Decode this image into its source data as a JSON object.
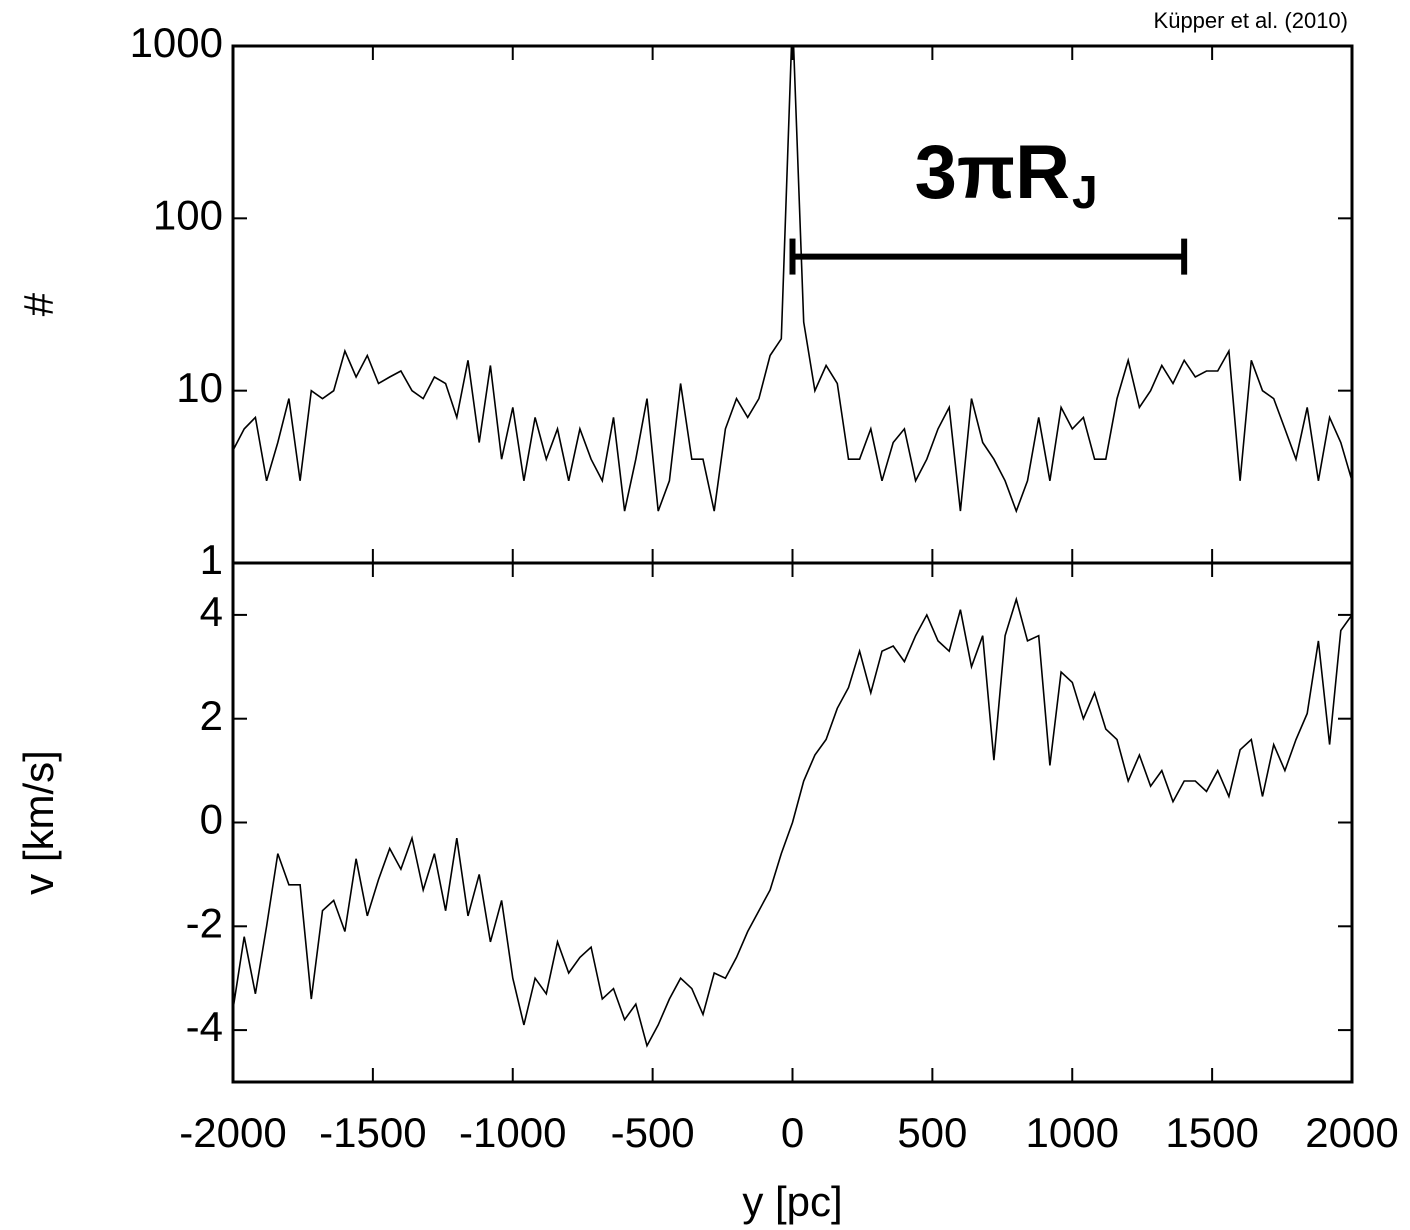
{
  "credit": "Küpper et al. (2010)",
  "chart_data": [
    {
      "type": "line",
      "ylabel": "#",
      "log_y": true,
      "color": "#000000",
      "xlim": [
        -2000,
        2000
      ],
      "xticks": [
        -2000,
        -1500,
        -1000,
        -500,
        0,
        500,
        1000,
        1500,
        2000
      ],
      "ylim": [
        1,
        1000
      ],
      "yticks": [
        1,
        10,
        100,
        1000
      ],
      "annotation": {
        "text": "3πR",
        "subscript": "J",
        "x": [
          0,
          1400
        ],
        "y": 60
      },
      "x": [
        -2000,
        -1960,
        -1920,
        -1880,
        -1840,
        -1800,
        -1760,
        -1720,
        -1680,
        -1640,
        -1600,
        -1560,
        -1520,
        -1480,
        -1440,
        -1400,
        -1360,
        -1320,
        -1280,
        -1240,
        -1200,
        -1160,
        -1120,
        -1080,
        -1040,
        -1000,
        -960,
        -920,
        -880,
        -840,
        -800,
        -760,
        -720,
        -680,
        -640,
        -600,
        -560,
        -520,
        -480,
        -440,
        -400,
        -360,
        -320,
        -280,
        -240,
        -200,
        -160,
        -120,
        -80,
        -40,
        0,
        40,
        80,
        120,
        160,
        200,
        240,
        280,
        320,
        360,
        400,
        440,
        480,
        520,
        560,
        600,
        640,
        680,
        720,
        760,
        800,
        840,
        880,
        920,
        960,
        1000,
        1040,
        1080,
        1120,
        1160,
        1200,
        1240,
        1280,
        1320,
        1360,
        1400,
        1440,
        1480,
        1520,
        1560,
        1600,
        1640,
        1680,
        1720,
        1760,
        1800,
        1840,
        1880,
        1920,
        1960,
        2000
      ],
      "values": [
        4.5,
        6,
        7,
        3,
        5,
        9,
        3,
        10,
        9,
        10,
        17,
        12,
        16,
        11,
        12,
        13,
        10,
        9,
        12,
        11,
        7,
        15,
        5,
        14,
        4,
        8,
        3,
        7,
        4,
        6,
        3,
        6,
        4,
        3,
        7,
        2,
        4,
        9,
        2,
        3,
        11,
        4,
        4,
        2,
        6,
        9,
        7,
        9,
        16,
        20,
        1500,
        25,
        10,
        14,
        11,
        4,
        4,
        6,
        3,
        5,
        6,
        3,
        4,
        6,
        8,
        2,
        9,
        5,
        4,
        3,
        2,
        3,
        7,
        3,
        8,
        6,
        7,
        4,
        4,
        9,
        15,
        8,
        10,
        14,
        11,
        15,
        12,
        13,
        13,
        17,
        3,
        15,
        10,
        9,
        6,
        4,
        8,
        3,
        7,
        5,
        3
      ]
    },
    {
      "type": "line",
      "ylabel": "v [km/s]",
      "xlabel": "y [pc]",
      "log_y": false,
      "color": "#000000",
      "xlim": [
        -2000,
        2000
      ],
      "xticks": [
        -2000,
        -1500,
        -1000,
        -500,
        0,
        500,
        1000,
        1500,
        2000
      ],
      "ylim": [
        -5,
        5
      ],
      "yticks": [
        -4,
        -2,
        0,
        2,
        4
      ],
      "x": [
        -2000,
        -1960,
        -1920,
        -1880,
        -1840,
        -1800,
        -1760,
        -1720,
        -1680,
        -1640,
        -1600,
        -1560,
        -1520,
        -1480,
        -1440,
        -1400,
        -1360,
        -1320,
        -1280,
        -1240,
        -1200,
        -1160,
        -1120,
        -1080,
        -1040,
        -1000,
        -960,
        -920,
        -880,
        -840,
        -800,
        -760,
        -720,
        -680,
        -640,
        -600,
        -560,
        -520,
        -480,
        -440,
        -400,
        -360,
        -320,
        -280,
        -240,
        -200,
        -160,
        -120,
        -80,
        -40,
        0,
        40,
        80,
        120,
        160,
        200,
        240,
        280,
        320,
        360,
        400,
        440,
        480,
        520,
        560,
        600,
        640,
        680,
        720,
        760,
        800,
        840,
        880,
        920,
        960,
        1000,
        1040,
        1080,
        1120,
        1160,
        1200,
        1240,
        1280,
        1320,
        1360,
        1400,
        1440,
        1480,
        1520,
        1560,
        1600,
        1640,
        1680,
        1720,
        1760,
        1800,
        1840,
        1880,
        1920,
        1960,
        2000
      ],
      "values": [
        -3.6,
        -2.2,
        -3.3,
        -2.0,
        -0.6,
        -1.2,
        -1.2,
        -3.4,
        -1.7,
        -1.5,
        -2.1,
        -0.7,
        -1.8,
        -1.1,
        -0.5,
        -0.9,
        -0.3,
        -1.3,
        -0.6,
        -1.7,
        -0.3,
        -1.8,
        -1.0,
        -2.3,
        -1.5,
        -3.0,
        -3.9,
        -3.0,
        -3.3,
        -2.3,
        -2.9,
        -2.6,
        -2.4,
        -3.4,
        -3.2,
        -3.8,
        -3.5,
        -4.3,
        -3.9,
        -3.4,
        -3.0,
        -3.2,
        -3.7,
        -2.9,
        -3.0,
        -2.6,
        -2.1,
        -1.7,
        -1.3,
        -0.6,
        0.0,
        0.8,
        1.3,
        1.6,
        2.2,
        2.6,
        3.3,
        2.5,
        3.3,
        3.4,
        3.1,
        3.6,
        4.0,
        3.5,
        3.3,
        4.1,
        3.0,
        3.6,
        1.2,
        3.6,
        4.3,
        3.5,
        3.6,
        1.1,
        2.9,
        2.7,
        2.0,
        2.5,
        1.8,
        1.6,
        0.8,
        1.3,
        0.7,
        1.0,
        0.4,
        0.8,
        0.8,
        0.6,
        1.0,
        0.5,
        1.4,
        1.6,
        0.5,
        1.5,
        1.0,
        1.6,
        2.1,
        3.5,
        1.5,
        3.7,
        4.0
      ]
    }
  ]
}
